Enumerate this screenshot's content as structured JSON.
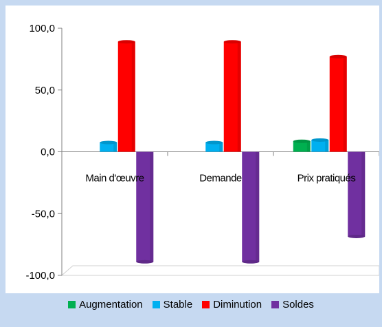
{
  "chart_data": {
    "type": "bar",
    "categories": [
      "Main d'œuvre",
      "Demande",
      "Prix pratiqués"
    ],
    "series": [
      {
        "name": "Augmentation",
        "color": "#00b050",
        "values": [
          0,
          0,
          8.5
        ]
      },
      {
        "name": "Stable",
        "color": "#00b0f0",
        "values": [
          7.5,
          7.5,
          9.5
        ]
      },
      {
        "name": "Diminution",
        "color": "#ff0000",
        "values": [
          89.0,
          89.0,
          77.0
        ]
      },
      {
        "name": "Soldes",
        "color": "#7030a0",
        "values": [
          -89.0,
          -89.0,
          -68.5
        ]
      }
    ],
    "ylim": [
      -100,
      100
    ],
    "yticks": [
      -100,
      -50,
      0,
      50,
      100
    ],
    "ytick_labels": [
      "-100,0",
      "-50,0",
      "0,0",
      "50,0",
      "100,0"
    ],
    "grid": false,
    "legend_position": "bottom",
    "title": "",
    "xlabel": "",
    "ylabel": ""
  }
}
